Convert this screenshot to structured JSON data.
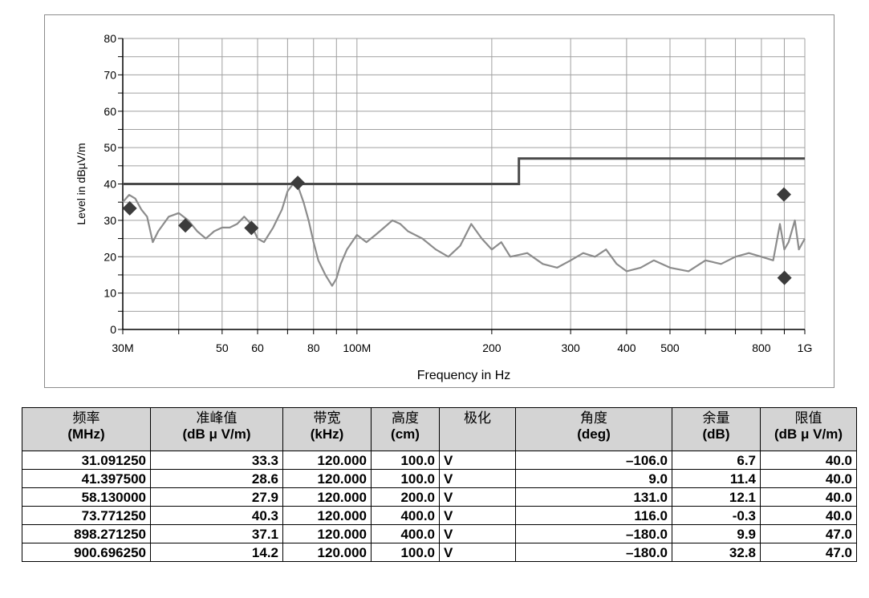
{
  "chart_data": {
    "type": "line",
    "title": "",
    "xlabel": "Frequency in Hz",
    "ylabel": "Level in dBµV/m",
    "x_scale": "log",
    "xlim": [
      30,
      1000
    ],
    "ylim": [
      0,
      80
    ],
    "yticks": [
      0,
      10,
      20,
      30,
      40,
      50,
      60,
      70,
      80
    ],
    "xtick_labels": [
      {
        "value": 30,
        "label": "30M"
      },
      {
        "value": 50,
        "label": "50"
      },
      {
        "value": 60,
        "label": "60"
      },
      {
        "value": 80,
        "label": "80"
      },
      {
        "value": 100,
        "label": "100M"
      },
      {
        "value": 200,
        "label": "200"
      },
      {
        "value": 300,
        "label": "300"
      },
      {
        "value": 400,
        "label": "400"
      },
      {
        "value": 500,
        "label": "500"
      },
      {
        "value": 800,
        "label": "800"
      },
      {
        "value": 1000,
        "label": "1G"
      }
    ],
    "grid": true,
    "limit_line": {
      "points": [
        [
          30,
          40
        ],
        [
          230,
          40
        ],
        [
          230,
          47
        ],
        [
          1000,
          47
        ]
      ],
      "color": "#4a4a4a"
    },
    "trace": {
      "color": "#8c8c8c",
      "points": [
        [
          30,
          35
        ],
        [
          31,
          37
        ],
        [
          32,
          36
        ],
        [
          33,
          33
        ],
        [
          34,
          31
        ],
        [
          35,
          24
        ],
        [
          36,
          27
        ],
        [
          38,
          31
        ],
        [
          40,
          32
        ],
        [
          42,
          30
        ],
        [
          44,
          27
        ],
        [
          46,
          25
        ],
        [
          48,
          27
        ],
        [
          50,
          28
        ],
        [
          52,
          28
        ],
        [
          54,
          29
        ],
        [
          56,
          31
        ],
        [
          58,
          29
        ],
        [
          60,
          25
        ],
        [
          62,
          24
        ],
        [
          65,
          28
        ],
        [
          68,
          33
        ],
        [
          70,
          38
        ],
        [
          72,
          40
        ],
        [
          74,
          39
        ],
        [
          76,
          35
        ],
        [
          78,
          30
        ],
        [
          80,
          24
        ],
        [
          82,
          19
        ],
        [
          85,
          15
        ],
        [
          88,
          12
        ],
        [
          90,
          14
        ],
        [
          92,
          18
        ],
        [
          95,
          22
        ],
        [
          100,
          26
        ],
        [
          105,
          24
        ],
        [
          110,
          26
        ],
        [
          115,
          28
        ],
        [
          120,
          30
        ],
        [
          125,
          29
        ],
        [
          130,
          27
        ],
        [
          140,
          25
        ],
        [
          150,
          22
        ],
        [
          160,
          20
        ],
        [
          170,
          23
        ],
        [
          180,
          29
        ],
        [
          190,
          25
        ],
        [
          200,
          22
        ],
        [
          210,
          24
        ],
        [
          220,
          20
        ],
        [
          240,
          21
        ],
        [
          260,
          18
        ],
        [
          280,
          17
        ],
        [
          300,
          19
        ],
        [
          320,
          21
        ],
        [
          340,
          20
        ],
        [
          360,
          22
        ],
        [
          380,
          18
        ],
        [
          400,
          16
        ],
        [
          430,
          17
        ],
        [
          460,
          19
        ],
        [
          500,
          17
        ],
        [
          550,
          16
        ],
        [
          600,
          19
        ],
        [
          650,
          18
        ],
        [
          700,
          20
        ],
        [
          750,
          21
        ],
        [
          800,
          20
        ],
        [
          850,
          19
        ],
        [
          880,
          29
        ],
        [
          900,
          22
        ],
        [
          920,
          24
        ],
        [
          950,
          30
        ],
        [
          970,
          22
        ],
        [
          1000,
          25
        ]
      ]
    },
    "markers": [
      {
        "freq": 31.09125,
        "level": 33.3
      },
      {
        "freq": 41.3975,
        "level": 28.6
      },
      {
        "freq": 58.13,
        "level": 27.9
      },
      {
        "freq": 73.77125,
        "level": 40.3
      },
      {
        "freq": 898.27125,
        "level": 37.1
      },
      {
        "freq": 900.69625,
        "level": 14.2
      }
    ]
  },
  "table": {
    "headers": [
      {
        "l1": "频率",
        "l2": "(MHz)"
      },
      {
        "l1": "准峰值",
        "l2": "(dB μ V/m)"
      },
      {
        "l1": "带宽",
        "l2": "(kHz)"
      },
      {
        "l1": "高度",
        "l2": "(cm)"
      },
      {
        "l1": "极化",
        "l2": ""
      },
      {
        "l1": "角度",
        "l2": "(deg)"
      },
      {
        "l1": "余量",
        "l2": "(dB)"
      },
      {
        "l1": "限值",
        "l2": "(dB μ V/m)"
      }
    ],
    "rows": [
      [
        "31.091250",
        "33.3",
        "120.000",
        "100.0",
        "V",
        "–106.0",
        "6.7",
        "40.0"
      ],
      [
        "41.397500",
        "28.6",
        "120.000",
        "100.0",
        "V",
        "9.0",
        "11.4",
        "40.0"
      ],
      [
        "58.130000",
        "27.9",
        "120.000",
        "200.0",
        "V",
        "131.0",
        "12.1",
        "40.0"
      ],
      [
        "73.771250",
        "40.3",
        "120.000",
        "400.0",
        "V",
        "116.0",
        "-0.3",
        "40.0"
      ],
      [
        "898.271250",
        "37.1",
        "120.000",
        "400.0",
        "V",
        "–180.0",
        "9.9",
        "47.0"
      ],
      [
        "900.696250",
        "14.2",
        "120.000",
        "100.0",
        "V",
        "–180.0",
        "32.8",
        "47.0"
      ]
    ]
  }
}
